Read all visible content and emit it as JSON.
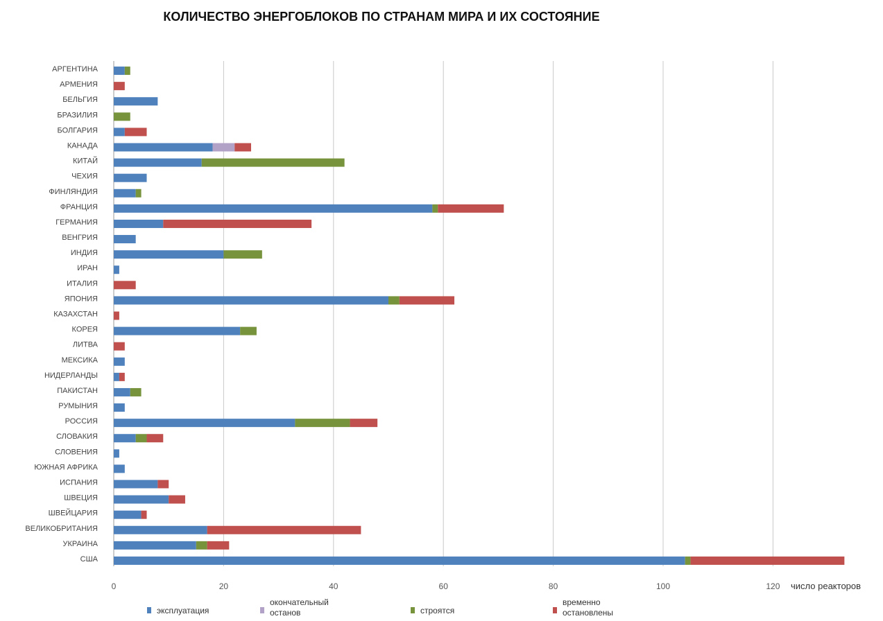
{
  "chart_data": {
    "type": "bar",
    "orientation": "horizontal",
    "stacked": true,
    "title": "КОЛИЧЕСТВО ЭНЕРГОБЛОКОВ ПО СТРАНАМ  МИРА И ИХ СОСТОЯНИЕ",
    "xlabel": "число реакторов",
    "xlim": [
      0,
      134
    ],
    "xticks": [
      0,
      20,
      40,
      60,
      80,
      100,
      120
    ],
    "grid": true,
    "legend_position": "bottom",
    "categories": [
      "АРГЕНТИНА",
      "АРМЕНИЯ",
      "БЕЛЬГИЯ",
      "БРАЗИЛИЯ",
      "БОЛГАРИЯ",
      "КАНАДА",
      "КИТАЙ",
      "ЧЕХИЯ",
      "ФИНЛЯНДИЯ",
      "ФРАНЦИЯ",
      "ГЕРМАНИЯ",
      "ВЕНГРИЯ",
      "ИНДИЯ",
      "ИРАН",
      "ИТАЛИЯ",
      "ЯПОНИЯ",
      "КАЗАХСТАН",
      "КОРЕЯ",
      "ЛИТВА",
      "МЕКСИКА",
      "НИДЕРЛАНДЫ",
      "ПАКИСТАН",
      "РУМЫНИЯ",
      "РОССИЯ",
      "СЛОВАКИЯ",
      "СЛОВЕНИЯ",
      "ЮЖНАЯ АФРИКА",
      "ИСПАНИЯ",
      "ШВЕЦИЯ",
      "ШВЕЙЦАРИЯ",
      "ВЕЛИКОБРИТАНИЯ",
      "УКРАИНА",
      "США"
    ],
    "series": [
      {
        "name": "эксплуатация",
        "color": "#4f81bd",
        "values": [
          2,
          0,
          8,
          0,
          2,
          18,
          16,
          6,
          4,
          58,
          9,
          4,
          20,
          1,
          0,
          50,
          0,
          23,
          0,
          2,
          1,
          3,
          2,
          33,
          4,
          1,
          2,
          8,
          10,
          5,
          17,
          15,
          104
        ]
      },
      {
        "name": "окончательный останов",
        "color": "#b3a2c7",
        "values": [
          0,
          0,
          0,
          0,
          0,
          4,
          0,
          0,
          0,
          0,
          0,
          0,
          0,
          0,
          0,
          0,
          0,
          0,
          0,
          0,
          0,
          0,
          0,
          0,
          0,
          0,
          0,
          0,
          0,
          0,
          0,
          0,
          0
        ]
      },
      {
        "name": "строятся",
        "color": "#77933c",
        "values": [
          1,
          0,
          0,
          3,
          0,
          0,
          26,
          0,
          1,
          1,
          0,
          0,
          7,
          0,
          0,
          2,
          0,
          3,
          0,
          0,
          0,
          2,
          0,
          10,
          2,
          0,
          0,
          0,
          0,
          0,
          0,
          2,
          1
        ]
      },
      {
        "name": "временно остановлены",
        "color": "#c0504d",
        "values": [
          0,
          2,
          0,
          0,
          4,
          3,
          0,
          0,
          0,
          12,
          27,
          0,
          0,
          0,
          4,
          10,
          1,
          0,
          2,
          0,
          1,
          0,
          0,
          5,
          3,
          0,
          0,
          2,
          3,
          1,
          28,
          4,
          28
        ]
      }
    ]
  }
}
